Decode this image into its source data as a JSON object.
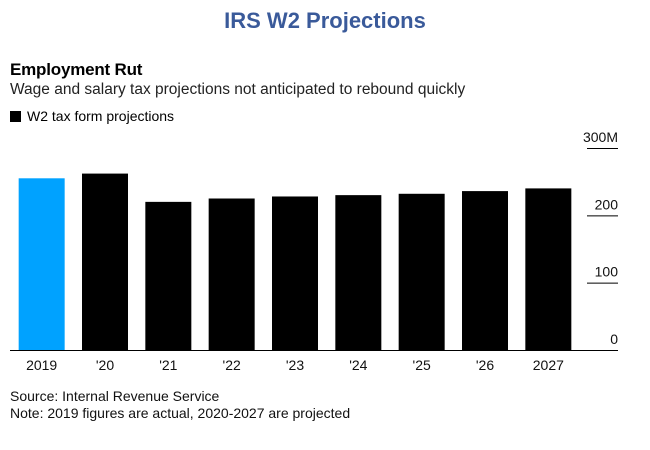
{
  "header": {
    "title": "IRS W2 Projections"
  },
  "chart_data": {
    "type": "bar",
    "title": "Employment Rut",
    "subtitle": "Wage and salary tax projections not anticipated to rebound quickly",
    "legend": [
      {
        "name": "W2 tax form projections",
        "color": "#000000"
      }
    ],
    "categories": [
      "2019",
      "'20",
      "'21",
      "'22",
      "'23",
      "'24",
      "'25",
      "'26",
      "2027"
    ],
    "series": [
      {
        "name": "W2 tax form projections",
        "values": [
          255,
          262,
          220,
          225,
          228,
          230,
          232,
          236,
          240
        ],
        "colors": [
          "#00a2ff",
          "#000000",
          "#000000",
          "#000000",
          "#000000",
          "#000000",
          "#000000",
          "#000000",
          "#000000"
        ]
      }
    ],
    "ylim": [
      0,
      300
    ],
    "yticks": [
      {
        "value": 0,
        "label": "0"
      },
      {
        "value": 100,
        "label": "100"
      },
      {
        "value": 200,
        "label": "200"
      },
      {
        "value": 300,
        "label": "300M"
      }
    ],
    "ylabel": "",
    "xlabel": "",
    "y_axis_position": "right",
    "grid": false
  },
  "footer": {
    "source": "Source: Internal Revenue Service",
    "note": "Note: 2019 figures are actual, 2020-2027 are projected"
  }
}
